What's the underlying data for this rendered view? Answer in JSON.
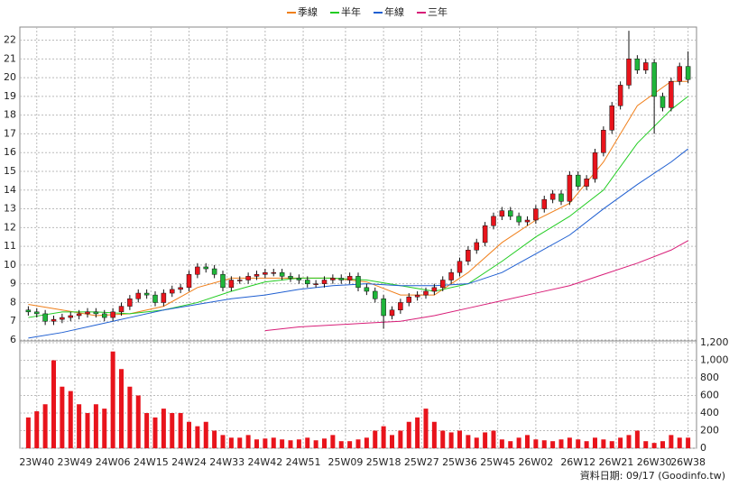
{
  "chart_data": {
    "type": "candlestick",
    "xlim": [
      -2,
      158
    ],
    "xticks": [
      {
        "value": 2,
        "label": "23W40"
      },
      {
        "value": 11,
        "label": "23W49"
      },
      {
        "value": 20,
        "label": "24W06"
      },
      {
        "value": 29,
        "label": "24W15"
      },
      {
        "value": 38,
        "label": "24W24"
      },
      {
        "value": 47,
        "label": "24W33"
      },
      {
        "value": 56,
        "label": "24W42"
      },
      {
        "value": 65,
        "label": "24W51"
      },
      {
        "value": 75,
        "label": "25W09"
      },
      {
        "value": 84,
        "label": "25W18"
      },
      {
        "value": 93,
        "label": "25W27"
      },
      {
        "value": 102,
        "label": "25W36"
      },
      {
        "value": 111,
        "label": "25W45"
      },
      {
        "value": 120,
        "label": "26W02"
      },
      {
        "value": 130,
        "label": "26W12"
      },
      {
        "value": 139,
        "label": "26W21"
      },
      {
        "value": 148,
        "label": "26W30"
      },
      {
        "value": 156,
        "label": "26W38"
      }
    ],
    "ylim": [
      6,
      22.7
    ],
    "yticks": [
      6,
      7,
      8,
      9,
      10,
      11,
      12,
      13,
      14,
      15,
      16,
      17,
      18,
      19,
      20,
      21,
      22
    ],
    "y2lim": [
      0,
      1200
    ],
    "y2ticks": [
      0,
      200,
      400,
      600,
      800,
      {
        "value": 1000,
        "label": "1,000"
      },
      {
        "value": 1200,
        "label": "1,200"
      }
    ],
    "grid": true,
    "legend": "top",
    "up_color": "#e8141c",
    "down_color": "#1fb53a",
    "candles": {
      "x": [
        0,
        2,
        4,
        6,
        8,
        10,
        12,
        14,
        16,
        18,
        20,
        22,
        24,
        26,
        28,
        30,
        32,
        34,
        36,
        38,
        40,
        42,
        44,
        46,
        48,
        50,
        52,
        54,
        56,
        58,
        60,
        62,
        64,
        66,
        68,
        70,
        72,
        74,
        76,
        78,
        80,
        82,
        84,
        86,
        88,
        90,
        92,
        94,
        96,
        98,
        100,
        102,
        104,
        106,
        108,
        110,
        112,
        114,
        116,
        118,
        120,
        122,
        124,
        126,
        128,
        130,
        132,
        134,
        136,
        138,
        140,
        142,
        144,
        146,
        148,
        150,
        152,
        154,
        156
      ],
      "open": [
        7.6,
        7.5,
        7.4,
        7.0,
        7.1,
        7.2,
        7.3,
        7.4,
        7.5,
        7.4,
        7.2,
        7.5,
        7.8,
        8.2,
        8.5,
        8.4,
        8.0,
        8.5,
        8.7,
        8.8,
        9.5,
        9.9,
        9.8,
        9.5,
        8.8,
        9.2,
        9.2,
        9.4,
        9.5,
        9.6,
        9.6,
        9.4,
        9.3,
        9.2,
        9.0,
        9.0,
        9.2,
        9.3,
        9.2,
        9.4,
        8.8,
        8.6,
        8.2,
        7.3,
        7.6,
        8.0,
        8.3,
        8.4,
        8.6,
        8.8,
        9.2,
        9.6,
        10.2,
        10.8,
        11.2,
        12.1,
        12.6,
        12.9,
        12.6,
        12.3,
        12.4,
        13.0,
        13.5,
        13.8,
        13.4,
        14.8,
        14.2,
        14.6,
        16.0,
        17.2,
        18.5,
        19.6,
        21.0,
        20.4,
        20.8,
        19.0,
        18.4,
        19.8,
        20.6
      ],
      "high": [
        7.8,
        7.7,
        7.6,
        7.3,
        7.4,
        7.5,
        7.6,
        7.7,
        7.7,
        7.6,
        7.7,
        8.0,
        8.4,
        8.7,
        8.7,
        8.6,
        8.7,
        8.9,
        9.0,
        9.7,
        10.1,
        10.1,
        10.0,
        9.7,
        9.4,
        9.4,
        9.6,
        9.7,
        9.8,
        9.8,
        9.8,
        9.6,
        9.5,
        9.4,
        9.2,
        9.4,
        9.5,
        9.5,
        9.6,
        9.6,
        9.0,
        8.8,
        8.4,
        7.8,
        8.2,
        8.5,
        8.6,
        8.8,
        9.0,
        9.4,
        9.8,
        10.4,
        11.0,
        11.4,
        12.3,
        12.8,
        13.1,
        13.1,
        12.8,
        12.6,
        13.2,
        13.7,
        14.0,
        14.0,
        15.0,
        15.0,
        14.8,
        16.2,
        17.4,
        18.7,
        19.8,
        22.5,
        21.2,
        21.0,
        21.0,
        19.2,
        20.0,
        20.8,
        21.4
      ],
      "low": [
        7.3,
        7.2,
        6.8,
        6.8,
        6.9,
        7.0,
        7.1,
        7.2,
        7.2,
        7.0,
        7.0,
        7.3,
        7.6,
        8.0,
        8.2,
        7.8,
        7.8,
        8.3,
        8.5,
        8.6,
        9.3,
        9.6,
        9.3,
        8.6,
        8.6,
        9.0,
        9.0,
        9.2,
        9.3,
        9.4,
        9.2,
        9.1,
        9.0,
        8.8,
        8.8,
        8.8,
        9.0,
        9.0,
        9.0,
        8.6,
        8.4,
        8.0,
        6.6,
        7.1,
        7.4,
        7.8,
        8.1,
        8.2,
        8.4,
        8.6,
        9.0,
        9.4,
        10.0,
        10.6,
        11.0,
        11.9,
        12.4,
        12.4,
        12.1,
        12.1,
        12.2,
        12.8,
        13.3,
        13.2,
        13.2,
        14.0,
        14.0,
        14.4,
        15.8,
        17.0,
        18.3,
        19.4,
        20.2,
        20.2,
        17.0,
        18.2,
        18.2,
        19.6,
        19.7
      ],
      "close": [
        7.5,
        7.4,
        7.0,
        7.1,
        7.2,
        7.3,
        7.4,
        7.5,
        7.4,
        7.2,
        7.5,
        7.8,
        8.2,
        8.5,
        8.4,
        8.0,
        8.5,
        8.7,
        8.8,
        9.5,
        9.9,
        9.8,
        9.5,
        8.8,
        9.2,
        9.2,
        9.4,
        9.5,
        9.6,
        9.6,
        9.4,
        9.3,
        9.2,
        9.0,
        9.0,
        9.2,
        9.3,
        9.2,
        9.4,
        8.8,
        8.6,
        8.2,
        7.3,
        7.6,
        8.0,
        8.3,
        8.4,
        8.6,
        8.8,
        9.2,
        9.6,
        10.2,
        10.8,
        11.2,
        12.1,
        12.6,
        12.9,
        12.6,
        12.3,
        12.4,
        13.0,
        13.5,
        13.8,
        13.4,
        14.8,
        14.2,
        14.6,
        16.0,
        17.2,
        18.5,
        19.6,
        21.0,
        20.4,
        20.8,
        19.0,
        18.4,
        19.8,
        20.6,
        19.9
      ]
    },
    "volume": {
      "color": "#e8141c",
      "values": [
        350,
        420,
        500,
        1000,
        700,
        650,
        500,
        400,
        500,
        450,
        1100,
        900,
        700,
        600,
        400,
        350,
        450,
        400,
        400,
        300,
        250,
        300,
        200,
        150,
        120,
        120,
        150,
        100,
        110,
        120,
        100,
        90,
        100,
        120,
        90,
        110,
        150,
        80,
        80,
        100,
        120,
        200,
        250,
        150,
        200,
        300,
        350,
        450,
        300,
        200,
        180,
        200,
        150,
        120,
        180,
        200,
        100,
        80,
        120,
        150,
        100,
        90,
        80,
        100,
        120,
        100,
        80,
        120,
        100,
        80,
        120,
        150,
        200,
        80,
        60,
        80,
        150,
        120,
        120
      ]
    },
    "series": [
      {
        "name": "季線",
        "color": "#f07f1a",
        "x": [
          0,
          8,
          16,
          24,
          32,
          40,
          48,
          56,
          64,
          72,
          80,
          88,
          96,
          104,
          112,
          120,
          128,
          136,
          144,
          152,
          156
        ],
        "values": [
          7.9,
          7.6,
          7.3,
          7.4,
          7.8,
          8.8,
          9.3,
          9.3,
          9.3,
          9.3,
          9.1,
          8.4,
          8.4,
          9.6,
          11.2,
          12.4,
          13.3,
          15.5,
          18.5,
          19.8,
          19.8
        ]
      },
      {
        "name": "半年",
        "color": "#22cc22",
        "x": [
          0,
          8,
          16,
          24,
          32,
          40,
          48,
          56,
          64,
          72,
          80,
          88,
          96,
          104,
          112,
          120,
          128,
          136,
          144,
          152,
          156
        ],
        "values": [
          7.2,
          7.5,
          7.5,
          7.4,
          7.6,
          8.0,
          8.6,
          9.1,
          9.3,
          9.3,
          9.2,
          8.9,
          8.6,
          9.0,
          10.2,
          11.5,
          12.6,
          14.0,
          16.5,
          18.3,
          19.0
        ]
      },
      {
        "name": "年線",
        "color": "#1f5fd1",
        "x": [
          0,
          8,
          16,
          24,
          32,
          40,
          48,
          56,
          64,
          72,
          80,
          88,
          96,
          104,
          112,
          120,
          128,
          136,
          144,
          152,
          156
        ],
        "values": [
          6.1,
          6.4,
          6.8,
          7.2,
          7.6,
          7.9,
          8.2,
          8.4,
          8.7,
          8.9,
          9.0,
          8.9,
          8.9,
          9.0,
          9.6,
          10.6,
          11.6,
          13.0,
          14.3,
          15.5,
          16.2
        ]
      },
      {
        "name": "三年",
        "color": "#d81e78",
        "x": [
          0,
          8,
          16,
          24,
          32,
          40,
          48,
          56,
          64,
          72,
          80,
          88,
          96,
          104,
          112,
          120,
          128,
          136,
          144,
          152,
          156
        ],
        "values": [
          null,
          null,
          null,
          null,
          null,
          null,
          null,
          6.5,
          6.7,
          6.8,
          6.9,
          7.0,
          7.3,
          7.7,
          8.1,
          8.5,
          8.9,
          9.5,
          10.1,
          10.8,
          11.3
        ]
      }
    ],
    "footer": "資料日期: 09/17 (Goodinfo.tw)"
  }
}
